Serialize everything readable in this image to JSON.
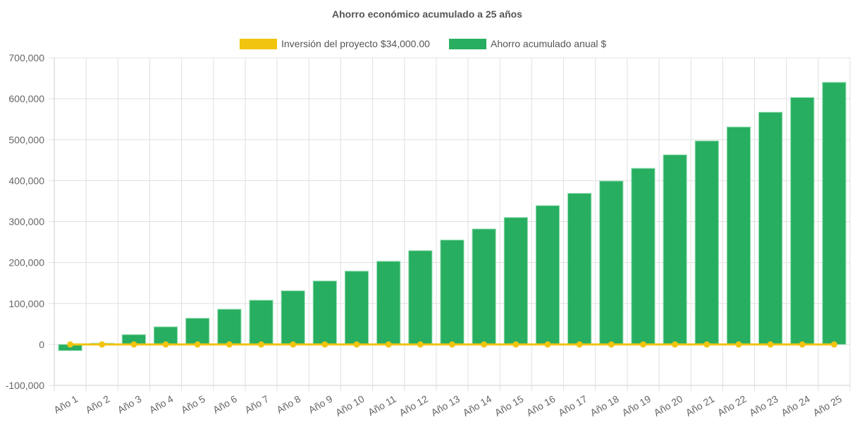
{
  "chart_data": {
    "type": "bar",
    "title": "Ahorro económico acumulado a 25 años",
    "categories": [
      "Año 1",
      "Año 2",
      "Año 3",
      "Año 4",
      "Año 5",
      "Año 6",
      "Año 7",
      "Año 8",
      "Año 9",
      "Año 10",
      "Año 11",
      "Año 12",
      "Año 13",
      "Año 14",
      "Año 15",
      "Año 16",
      "Año 17",
      "Año 18",
      "Año 19",
      "Año 20",
      "Año 21",
      "Año 22",
      "Año 23",
      "Año 24",
      "Año 25"
    ],
    "series": [
      {
        "name": "Inversión del proyecto $34,000.00",
        "type": "line",
        "color": "#f1c40f",
        "values": [
          0,
          0,
          0,
          0,
          0,
          0,
          0,
          0,
          0,
          0,
          0,
          0,
          0,
          0,
          0,
          0,
          0,
          0,
          0,
          0,
          0,
          0,
          0,
          0,
          0
        ]
      },
      {
        "name": "Ahorro acumulado anual $",
        "type": "bar",
        "color": "#27ae60",
        "values": [
          -15000,
          3000,
          24000,
          43000,
          64000,
          86000,
          108000,
          131000,
          155000,
          179000,
          203000,
          229000,
          255000,
          282000,
          310000,
          339000,
          369000,
          399000,
          430000,
          463000,
          497000,
          531000,
          567000,
          603000,
          640000
        ]
      }
    ],
    "ylim": [
      -100000,
      700000
    ],
    "yticks": [
      "-100,000",
      "0",
      "100,000",
      "200,000",
      "300,000",
      "400,000",
      "500,000",
      "600,000",
      "700,000"
    ],
    "grid": true,
    "legend": "top"
  }
}
